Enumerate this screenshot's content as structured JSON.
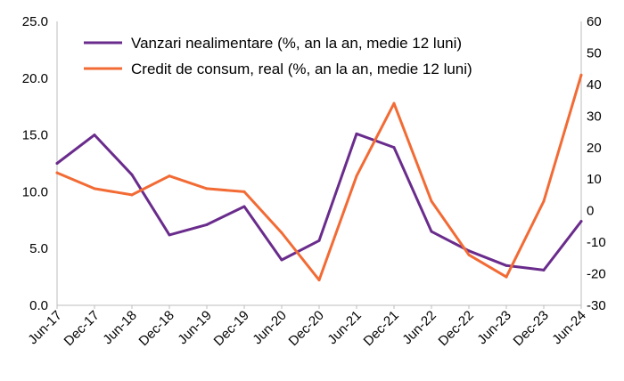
{
  "chart_data": {
    "type": "line",
    "title": "",
    "x": [
      "Jun-17",
      "Dec-17",
      "Jun-18",
      "Dec-18",
      "Jun-19",
      "Dec-19",
      "Jun-20",
      "Dec-20",
      "Jun-21",
      "Dec-21",
      "Jun-22",
      "Dec-22",
      "Jun-23",
      "Dec-23",
      "Jun-24"
    ],
    "x_ticks": [
      "Jun-17",
      "Dec-17",
      "Jun-18",
      "Dec-18",
      "Jun-19",
      "Dec-19",
      "Jun-20",
      "Dec-20",
      "Jun-21",
      "Dec-21",
      "Jun-22",
      "Dec-22",
      "Jun-23",
      "Dec-23",
      "Jun-24"
    ],
    "y_left": {
      "range": [
        0,
        25
      ],
      "ticks": [
        "0.0",
        "5.0",
        "10.0",
        "15.0",
        "20.0",
        "25.0"
      ]
    },
    "y_right": {
      "range": [
        -30,
        60
      ],
      "ticks": [
        "-30",
        "-20",
        "-10",
        "0",
        "10",
        "20",
        "30",
        "40",
        "50",
        "60"
      ]
    },
    "legend": {
      "placement": "top-center"
    },
    "grid": false,
    "series": [
      {
        "name": "Vanzari nealimentare (%, an la an, medie 12 luni)",
        "axis": "left",
        "color": "#6A2C8C",
        "values": [
          12.5,
          15.0,
          11.5,
          6.2,
          7.1,
          8.7,
          4.0,
          5.7,
          15.1,
          13.9,
          6.5,
          4.8,
          3.5,
          3.1,
          7.4
        ]
      },
      {
        "name": "Credit de consum, real (%, an la an, medie 12 luni)",
        "axis": "right",
        "color": "#F26B35",
        "values": [
          12.0,
          7.0,
          5.0,
          11.0,
          7.0,
          6.0,
          -7.0,
          -22.0,
          11.0,
          34.0,
          3.0,
          -14.0,
          -21.0,
          3.0,
          43.0
        ]
      }
    ]
  }
}
